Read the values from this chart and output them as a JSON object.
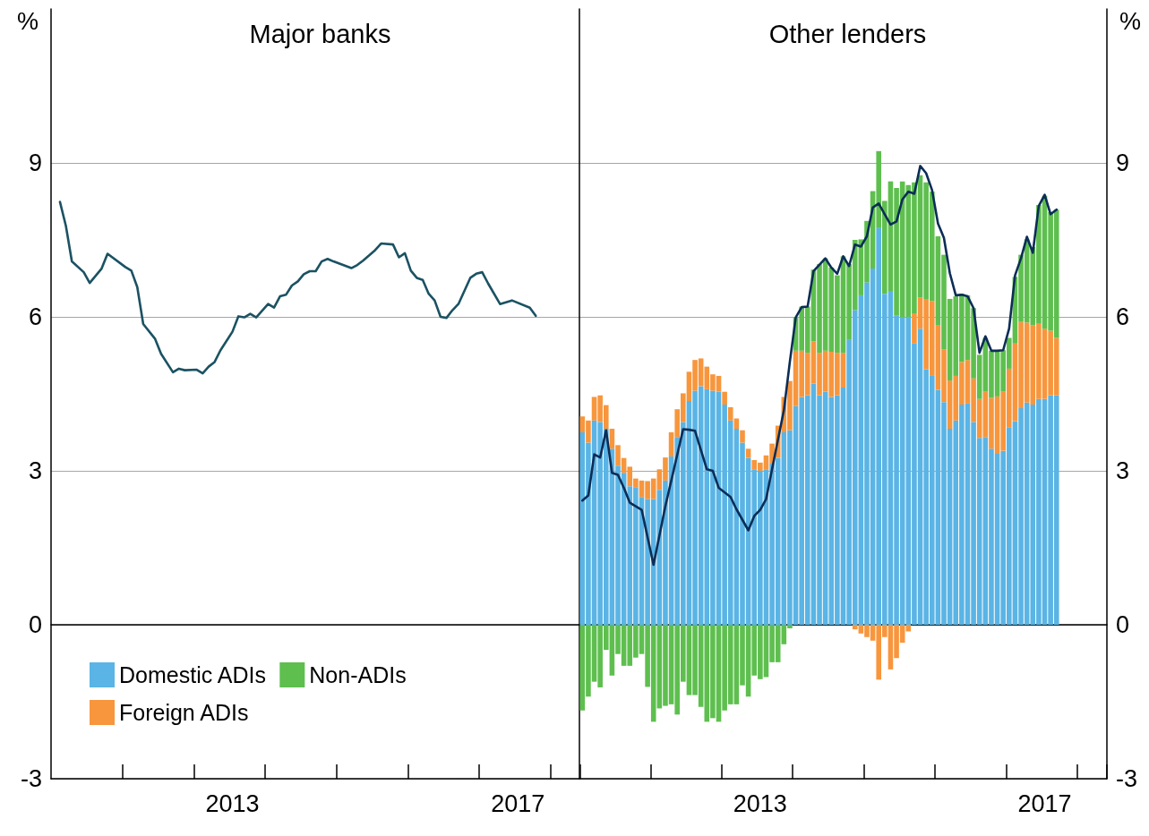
{
  "chart_data": [
    {
      "type": "line",
      "title": "Major banks",
      "ylabel": "%",
      "xlim": [
        "2011-01-01",
        "2018-06-01"
      ],
      "ylim": [
        -3,
        12
      ],
      "yticks": [
        -3,
        0,
        3,
        6,
        9
      ],
      "xticks": [
        {
          "value": "2012-01-01",
          "label": null
        },
        {
          "value": "2013-01-01",
          "label": null
        },
        {
          "value": "2013-07-01",
          "label": "2013"
        },
        {
          "value": "2014-01-01",
          "label": null
        },
        {
          "value": "2015-01-01",
          "label": null
        },
        {
          "value": "2016-01-01",
          "label": null
        },
        {
          "value": "2017-01-01",
          "label": null
        },
        {
          "value": "2017-07-01",
          "label": "2017"
        },
        {
          "value": "2018-01-01",
          "label": null
        }
      ],
      "grid": "y",
      "marker": "none",
      "line_style": "solid",
      "series": [
        {
          "color": "#1b5263",
          "x": [
            "2011-02",
            "2011-03",
            "2011-04",
            "2011-06",
            "2011-07",
            "2011-09",
            "2011-10",
            "2012-01",
            "2012-02",
            "2012-03",
            "2012-04",
            "2012-06",
            "2012-07",
            "2012-09",
            "2012-10",
            "2012-11",
            "2013-01",
            "2013-02",
            "2013-03",
            "2013-04",
            "2013-05",
            "2013-07",
            "2013-08",
            "2013-09",
            "2013-10",
            "2013-11",
            "2014-01",
            "2014-02",
            "2014-03",
            "2014-04",
            "2014-05",
            "2014-06",
            "2014-07",
            "2014-08",
            "2014-09",
            "2014-10",
            "2014-11",
            "2014-12",
            "2015-03",
            "2015-04",
            "2015-05",
            "2015-07",
            "2015-08",
            "2015-10",
            "2015-11",
            "2015-12",
            "2016-01",
            "2016-02",
            "2016-03",
            "2016-04",
            "2016-05",
            "2016-06",
            "2016-07",
            "2016-08",
            "2016-09",
            "2016-11",
            "2016-12",
            "2017-01",
            "2017-02",
            "2017-04",
            "2017-06",
            "2017-09",
            "2017-10"
          ],
          "values": [
            8.24,
            7.77,
            7.08,
            6.87,
            6.66,
            6.94,
            7.23,
            6.97,
            6.9,
            6.58,
            5.86,
            5.57,
            5.28,
            4.92,
            4.99,
            4.96,
            4.97,
            4.9,
            5.03,
            5.12,
            5.35,
            5.71,
            6.01,
            5.99,
            6.06,
            5.99,
            6.25,
            6.18,
            6.4,
            6.43,
            6.61,
            6.69,
            6.83,
            6.89,
            6.89,
            7.08,
            7.13,
            7.08,
            6.95,
            7.01,
            7.1,
            7.3,
            7.43,
            7.41,
            7.16,
            7.24,
            6.9,
            6.76,
            6.72,
            6.45,
            6.32,
            6.0,
            5.98,
            6.13,
            6.25,
            6.76,
            6.84,
            6.87,
            6.65,
            6.25,
            6.32,
            6.18,
            6.02
          ]
        }
      ]
    },
    {
      "type": "bar",
      "title": "Other lenders",
      "ylabel": "%",
      "xlim": [
        "2011-01-01",
        "2018-06-01"
      ],
      "ylim": [
        -3,
        12
      ],
      "yticks": [
        -3,
        0,
        3,
        6,
        9
      ],
      "xticks": [
        {
          "value": "2012-01-01",
          "label": null
        },
        {
          "value": "2013-01-01",
          "label": null
        },
        {
          "value": "2013-07-01",
          "label": "2013"
        },
        {
          "value": "2014-01-01",
          "label": null
        },
        {
          "value": "2015-01-01",
          "label": null
        },
        {
          "value": "2016-01-01",
          "label": null
        },
        {
          "value": "2017-01-01",
          "label": null
        },
        {
          "value": "2017-07-01",
          "label": "2017"
        },
        {
          "value": "2018-01-01",
          "label": null
        }
      ],
      "grid": "y",
      "stacked": true,
      "legend": "bottom left",
      "marker": "none",
      "line_style": "solid",
      "x": [
        "2011-01",
        "2011-02",
        "2011-03",
        "2011-04",
        "2011-05",
        "2011-06",
        "2011-07",
        "2011-08",
        "2011-09",
        "2011-10",
        "2011-11",
        "2011-12",
        "2012-01",
        "2012-02",
        "2012-03",
        "2012-04",
        "2012-05",
        "2012-06",
        "2012-07",
        "2012-08",
        "2012-09",
        "2012-10",
        "2012-11",
        "2012-12",
        "2013-01",
        "2013-02",
        "2013-03",
        "2013-04",
        "2013-05",
        "2013-06",
        "2013-07",
        "2013-08",
        "2013-09",
        "2013-10",
        "2013-11",
        "2013-12",
        "2014-01",
        "2014-02",
        "2014-03",
        "2014-04",
        "2014-05",
        "2014-06",
        "2014-07",
        "2014-08",
        "2014-09",
        "2014-10",
        "2014-11",
        "2014-12",
        "2015-01",
        "2015-02",
        "2015-03",
        "2015-04",
        "2015-05",
        "2015-06",
        "2015-07",
        "2015-08",
        "2015-09",
        "2015-10",
        "2015-11",
        "2015-12",
        "2016-01",
        "2016-02",
        "2016-03",
        "2016-04",
        "2016-05",
        "2016-06",
        "2016-07",
        "2016-08",
        "2016-09",
        "2016-10",
        "2016-11",
        "2016-12",
        "2017-01",
        "2017-02",
        "2017-03",
        "2017-04",
        "2017-05",
        "2017-06",
        "2017-07",
        "2017-08",
        "2017-09"
      ],
      "series": [
        {
          "name": "Domestic ADIs",
          "color": "#5ab4e5",
          "values": [
            3.75,
            3.55,
            3.98,
            3.95,
            3.82,
            3.43,
            3.1,
            2.96,
            2.7,
            2.67,
            2.49,
            2.45,
            2.45,
            2.63,
            2.81,
            3.28,
            3.66,
            3.95,
            4.36,
            4.56,
            4.65,
            4.59,
            4.56,
            4.54,
            4.29,
            3.98,
            3.82,
            3.55,
            3.25,
            3.03,
            3.0,
            3.03,
            3.14,
            3.25,
            3.75,
            3.79,
            4.26,
            4.44,
            4.47,
            4.7,
            4.47,
            4.54,
            4.44,
            4.47,
            4.62,
            5.55,
            6.13,
            6.42,
            6.67,
            6.94,
            7.73,
            6.45,
            6.49,
            6.02,
            5.99,
            6.0,
            5.48,
            5.77,
            4.98,
            4.85,
            4.58,
            4.34,
            3.82,
            3.98,
            4.29,
            4.31,
            3.95,
            3.64,
            3.66,
            3.43,
            3.33,
            3.39,
            3.84,
            3.97,
            4.22,
            4.33,
            4.29,
            4.4,
            4.4,
            4.47,
            4.47
          ]
        },
        {
          "name": "Foreign ADIs",
          "color": "#f7963d",
          "values": [
            0.31,
            0.43,
            0.46,
            0.52,
            0.46,
            0.39,
            0.4,
            0.29,
            0.38,
            0.18,
            0.32,
            0.35,
            0.4,
            0.4,
            0.45,
            0.47,
            0.54,
            0.56,
            0.57,
            0.6,
            0.54,
            0.44,
            0.32,
            0.31,
            0.25,
            0.26,
            0.2,
            0.24,
            0.18,
            0.18,
            0.16,
            0.27,
            0.39,
            0.63,
            0.69,
            0.96,
            1.08,
            0.9,
            0.83,
            0.82,
            0.83,
            0.8,
            0.88,
            0.83,
            0.68,
            null,
            -0.09,
            -0.17,
            -0.24,
            -0.31,
            -1.07,
            -0.24,
            -0.87,
            -0.65,
            -0.35,
            -0.13,
            0.59,
            0.61,
            1.37,
            1.46,
            1.25,
            1.03,
            0.94,
            0.87,
            0.83,
            0.85,
            0.85,
            0.76,
            0.88,
            0.99,
            1.12,
            1.15,
            1.15,
            1.51,
            1.68,
            1.56,
            1.55,
            1.48,
            1.37,
            1.26,
            1.12
          ]
        },
        {
          "name": "Non-ADIs",
          "color": "#5ebf4f",
          "values": [
            -1.67,
            -1.4,
            -1.11,
            -1.22,
            -0.49,
            -0.99,
            -0.57,
            -0.8,
            -0.8,
            -0.64,
            -0.57,
            -1.21,
            -1.89,
            -1.63,
            -1.58,
            -1.55,
            -1.75,
            -1.11,
            -1.37,
            -1.37,
            -1.6,
            -1.89,
            -1.82,
            -1.89,
            -1.67,
            -1.55,
            -1.55,
            -1.18,
            -1.4,
            -0.99,
            -1.06,
            -1.02,
            -0.73,
            -0.73,
            -0.38,
            -0.07,
            0.65,
            0.86,
            0.9,
            1.4,
            1.73,
            1.8,
            1.64,
            1.51,
            1.88,
            1.48,
            1.37,
            1.09,
            1.2,
            1.51,
            1.5,
            1.81,
            2.15,
            2.49,
            2.65,
            2.57,
            2.55,
            2.38,
            2.27,
            2.13,
            1.74,
            1.84,
            1.59,
            1.55,
            1.33,
            1.26,
            1.37,
            0.86,
            1.05,
            0.92,
            0.89,
            0.81,
            0.6,
            1.3,
            1.31,
            1.62,
            1.52,
            2.3,
            2.59,
            2.31,
            2.5
          ]
        },
        {
          "type": "line",
          "color": "#0c2d57",
          "x": [
            "2011-01",
            "2011-02",
            "2011-03",
            "2011-04",
            "2011-05",
            "2011-06",
            "2011-07",
            "2011-08",
            "2011-09",
            "2011-10",
            "2011-11",
            "2012-01",
            "2012-03",
            "2012-06",
            "2012-07",
            "2012-08",
            "2012-10",
            "2012-11",
            "2012-12",
            "2013-02",
            "2013-03",
            "2013-05",
            "2013-06",
            "2013-07",
            "2013-08",
            "2013-09",
            "2013-11",
            "2013-12",
            "2014-01",
            "2014-02",
            "2014-03",
            "2014-04",
            "2014-06",
            "2014-07",
            "2014-08",
            "2014-09",
            "2014-10",
            "2014-11",
            "2014-12",
            "2015-01",
            "2015-02",
            "2015-03",
            "2015-04",
            "2015-05",
            "2015-06",
            "2015-07",
            "2015-08",
            "2015-09",
            "2015-10",
            "2015-11",
            "2015-12",
            "2016-01",
            "2016-02",
            "2016-03",
            "2016-04",
            "2016-05",
            "2016-06",
            "2016-07",
            "2016-08",
            "2016-09",
            "2016-10",
            "2016-11",
            "2016-12",
            "2017-01",
            "2017-02",
            "2017-03",
            "2017-04",
            "2017-05",
            "2017-06",
            "2017-07",
            "2017-08",
            "2017-09"
          ],
          "values": [
            2.42,
            2.52,
            3.32,
            3.26,
            3.79,
            2.96,
            2.92,
            2.67,
            2.38,
            2.31,
            2.24,
            1.17,
            2.31,
            3.81,
            3.8,
            3.78,
            3.03,
            3.0,
            2.67,
            2.49,
            2.25,
            1.84,
            2.12,
            2.24,
            2.45,
            3.03,
            4.18,
            5.12,
            5.99,
            6.19,
            6.2,
            6.89,
            7.14,
            6.96,
            6.84,
            7.18,
            6.99,
            7.41,
            7.37,
            7.57,
            8.13,
            8.21,
            8.0,
            7.8,
            7.86,
            8.29,
            8.44,
            8.4,
            8.94,
            8.8,
            8.47,
            7.82,
            7.54,
            6.85,
            6.42,
            6.43,
            6.4,
            6.17,
            5.3,
            5.62,
            5.34,
            5.34,
            5.35,
            5.77,
            6.81,
            7.14,
            7.56,
            7.25,
            8.16,
            8.38,
            8.0,
            8.09
          ]
        }
      ]
    }
  ]
}
